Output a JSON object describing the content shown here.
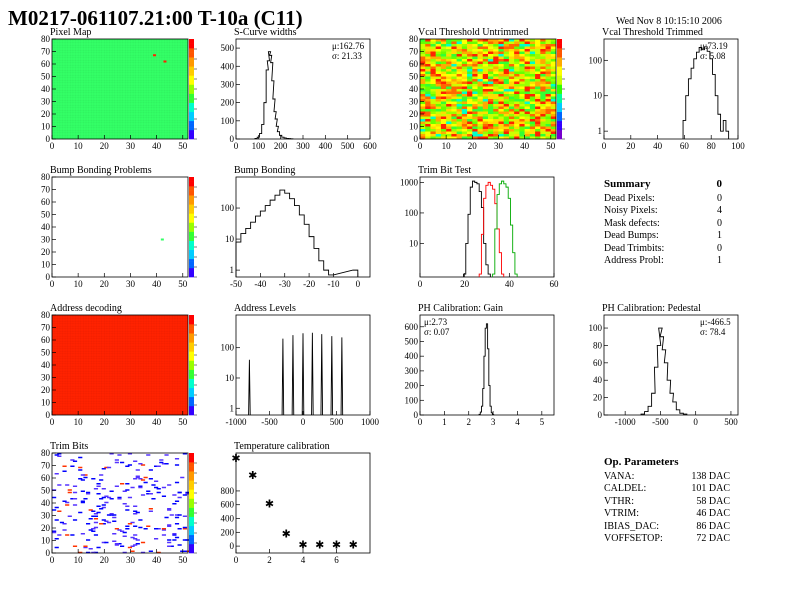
{
  "title": "M0217-061107.21:00 T-10a (C11)",
  "date": "Wed Nov  8 10:15:10 2006",
  "colors": {
    "green": "#33ff66",
    "red": "#ff2200",
    "orange": "#ff8800",
    "ph_calibration": "#ff0000",
    "frame": "#000000"
  },
  "panels": [
    {
      "name": "pixel-map",
      "title": "Pixel Map"
    },
    {
      "name": "s-curve-widths",
      "title": "S-Curve widths",
      "stats": [
        "μ:162.76",
        "σ: 21.33"
      ]
    },
    {
      "name": "vcal-untrimmed",
      "title": "Vcal Threshold Untrimmed"
    },
    {
      "name": "vcal-trimmed",
      "title": "Vcal Threshold Trimmed",
      "stats": [
        "μ:73.19",
        "σ: 5.08"
      ]
    },
    {
      "name": "bump-bonding-problems",
      "title": "Bump Bonding Problems"
    },
    {
      "name": "bump-bonding",
      "title": "Bump Bonding"
    },
    {
      "name": "trim-bit-test",
      "title": "Trim Bit Test"
    },
    {
      "name": "address-decoding",
      "title": "Address decoding"
    },
    {
      "name": "address-levels",
      "title": "Address Levels"
    },
    {
      "name": "ph-gain",
      "title": "PH Calibration: Gain",
      "stats": [
        "μ:2.73",
        "σ: 0.07"
      ]
    },
    {
      "name": "ph-pedestal",
      "title": "PH Calibration: Pedestal",
      "stats": [
        "μ:-466.5",
        "σ: 78.4"
      ]
    },
    {
      "name": "trim-bits",
      "title": "Trim Bits"
    },
    {
      "name": "temperature-calibration",
      "title": "Temperature calibration"
    }
  ],
  "summary": {
    "title": "Summary",
    "value": "0",
    "rows": [
      {
        "label": "Dead Pixels:",
        "value": "0"
      },
      {
        "label": "Noisy Pixels:",
        "value": "4"
      },
      {
        "label": "Mask defects:",
        "value": "0"
      },
      {
        "label": "Dead Bumps:",
        "value": "1"
      },
      {
        "label": "Dead Trimbits:",
        "value": "0"
      },
      {
        "label": "Address Probl:",
        "value": "1"
      }
    ]
  },
  "op_parameters": {
    "title": "Op. Parameters",
    "rows": [
      {
        "label": "VANA:",
        "value": "138 DAC"
      },
      {
        "label": "CALDEL:",
        "value": "101 DAC"
      },
      {
        "label": "VTHR:",
        "value": "58 DAC"
      },
      {
        "label": "VTRIM:",
        "value": "46 DAC"
      },
      {
        "label": "IBIAS_DAC:",
        "value": "86 DAC"
      },
      {
        "label": "VOFFSETOP:",
        "value": "72 DAC"
      }
    ]
  },
  "chart_data": [
    {
      "panel": "pixel-map",
      "type": "heatmap",
      "title": "Pixel Map",
      "xlim": [
        0,
        52
      ],
      "ylim": [
        0,
        80
      ],
      "xticks": [
        0,
        10,
        20,
        30,
        40,
        50
      ],
      "yticks": [
        0,
        10,
        20,
        30,
        40,
        50,
        60,
        70,
        80
      ],
      "fill": "green",
      "hot_pixels": [
        [
          39,
          67
        ],
        [
          43,
          62
        ]
      ]
    },
    {
      "panel": "s-curve-widths",
      "type": "bar",
      "title": "S-Curve widths",
      "xlim": [
        0,
        600
      ],
      "ylim": [
        0,
        550
      ],
      "xticks": [
        0,
        100,
        200,
        300,
        400,
        500,
        600
      ],
      "yticks": [
        0,
        100,
        200,
        300,
        400,
        500
      ],
      "x": [
        90,
        100,
        110,
        120,
        130,
        140,
        145,
        150,
        155,
        160,
        165,
        170,
        175,
        180,
        185,
        190,
        200,
        210,
        220,
        230,
        240,
        250
      ],
      "values": [
        3,
        10,
        30,
        80,
        200,
        380,
        430,
        480,
        460,
        420,
        320,
        220,
        150,
        110,
        70,
        40,
        20,
        10,
        6,
        3,
        2,
        1
      ]
    },
    {
      "panel": "vcal-untrimmed",
      "type": "heatmap",
      "title": "Vcal Threshold Untrimmed",
      "xlim": [
        0,
        52
      ],
      "ylim": [
        0,
        80
      ],
      "xticks": [
        0,
        10,
        20,
        30,
        40,
        50
      ],
      "yticks": [
        0,
        10,
        20,
        30,
        40,
        50,
        60,
        70,
        80
      ],
      "fill": "mixed-green-yellow-red"
    },
    {
      "panel": "vcal-trimmed",
      "type": "bar",
      "title": "Vcal Threshold Trimmed",
      "xlim": [
        0,
        100
      ],
      "ylim": [
        0.6,
        400
      ],
      "log_y": true,
      "xticks": [
        0,
        20,
        40,
        60,
        80,
        100
      ],
      "yticks": [
        1,
        10,
        100
      ],
      "x": [
        60,
        62,
        64,
        66,
        68,
        70,
        72,
        74,
        76,
        78,
        80,
        82,
        84,
        86,
        88,
        90,
        92
      ],
      "values": [
        2,
        10,
        30,
        60,
        110,
        170,
        230,
        200,
        240,
        180,
        110,
        40,
        10,
        3,
        1,
        2,
        1
      ]
    },
    {
      "panel": "bump-bonding-problems",
      "type": "heatmap",
      "title": "Bump Bonding Problems",
      "xlim": [
        0,
        52
      ],
      "ylim": [
        0,
        80
      ],
      "xticks": [
        0,
        10,
        20,
        30,
        40,
        50
      ],
      "yticks": [
        0,
        10,
        20,
        30,
        40,
        50,
        60,
        70,
        80
      ],
      "fill": "white",
      "hot_pixels": [
        [
          42,
          30
        ]
      ]
    },
    {
      "panel": "bump-bonding",
      "type": "bar",
      "title": "Bump Bonding",
      "xlim": [
        -50,
        5
      ],
      "ylim": [
        0.6,
        1000
      ],
      "log_y": true,
      "xticks": [
        -50,
        -40,
        -30,
        -20,
        -10,
        0
      ],
      "yticks": [
        1,
        10,
        100
      ],
      "x": [
        -49,
        -47,
        -45,
        -43,
        -41,
        -39,
        -37,
        -35,
        -33,
        -31,
        -29,
        -27,
        -25,
        -23,
        -21,
        -19,
        -17,
        -15,
        -13,
        -11,
        -1
      ],
      "values": [
        8,
        15,
        22,
        35,
        55,
        80,
        120,
        180,
        260,
        380,
        300,
        200,
        120,
        60,
        30,
        12,
        5,
        2,
        1,
        0.7,
        1
      ]
    },
    {
      "panel": "trim-bit-test",
      "type": "line",
      "title": "Trim Bit Test",
      "xlim": [
        0,
        60
      ],
      "ylim": [
        0.8,
        1500
      ],
      "log_y": true,
      "xticks": [
        0,
        20,
        40,
        60
      ],
      "yticks": [
        10,
        100,
        1000
      ],
      "series": [
        {
          "color": "#000000",
          "x": [
            20,
            21,
            22,
            23,
            24,
            25,
            26,
            27,
            28,
            29,
            30,
            31
          ],
          "values": [
            1,
            10,
            90,
            700,
            1100,
            1000,
            900,
            500,
            150,
            10,
            2,
            1
          ]
        },
        {
          "color": "#ff0000",
          "x": [
            27,
            28,
            29,
            30,
            31,
            32,
            33,
            34,
            35,
            36,
            37
          ],
          "values": [
            1,
            20,
            300,
            800,
            1000,
            800,
            600,
            200,
            30,
            5,
            1
          ]
        },
        {
          "color": "#00aa00",
          "x": [
            33,
            34,
            35,
            36,
            37,
            38,
            39,
            40,
            41,
            42,
            43
          ],
          "values": [
            1,
            30,
            400,
            900,
            1100,
            900,
            700,
            300,
            40,
            5,
            1
          ]
        }
      ]
    },
    {
      "panel": "address-decoding",
      "type": "heatmap",
      "title": "Address decoding",
      "xlim": [
        0,
        52
      ],
      "ylim": [
        0,
        80
      ],
      "xticks": [
        0,
        10,
        20,
        30,
        40,
        50
      ],
      "yticks": [
        0,
        10,
        20,
        30,
        40,
        50,
        60,
        70,
        80
      ],
      "fill": "red"
    },
    {
      "panel": "address-levels",
      "type": "line",
      "title": "Address Levels",
      "xlim": [
        -1000,
        1000
      ],
      "ylim": [
        0.6,
        1200
      ],
      "log_y": true,
      "xticks": [
        -1000,
        -500,
        0,
        500,
        1000
      ],
      "yticks": [
        1,
        10,
        100
      ],
      "peaks": [
        -800,
        -300,
        -150,
        0,
        140,
        280,
        430,
        580
      ],
      "peak_heights": [
        40,
        200,
        260,
        300,
        310,
        280,
        240,
        220
      ]
    },
    {
      "panel": "ph-gain",
      "type": "bar",
      "title": "PH Calibration: Gain",
      "xlim": [
        0,
        5.5
      ],
      "ylim": [
        0,
        680
      ],
      "xticks": [
        0,
        1,
        2,
        3,
        4,
        5
      ],
      "yticks": [
        0,
        100,
        200,
        300,
        400,
        500,
        600
      ],
      "x": [
        2.45,
        2.5,
        2.55,
        2.6,
        2.65,
        2.7,
        2.75,
        2.8,
        2.85,
        2.9,
        2.95,
        3.0
      ],
      "values": [
        5,
        20,
        60,
        180,
        400,
        590,
        620,
        450,
        200,
        60,
        15,
        3
      ]
    },
    {
      "panel": "ph-pedestal",
      "type": "bar",
      "title": "PH Calibration: Pedestal",
      "xlim": [
        -1300,
        600
      ],
      "ylim": [
        0,
        115
      ],
      "xticks": [
        -1000,
        -500,
        0,
        500
      ],
      "yticks": [
        0,
        20,
        40,
        60,
        80,
        100
      ],
      "x": [
        -750,
        -700,
        -650,
        -600,
        -560,
        -520,
        -500,
        -480,
        -450,
        -420,
        -380,
        -340,
        -300,
        -250,
        -200,
        -150
      ],
      "values": [
        1,
        4,
        10,
        25,
        55,
        80,
        100,
        90,
        75,
        60,
        40,
        25,
        15,
        6,
        2,
        1
      ]
    },
    {
      "panel": "trim-bits",
      "type": "heatmap",
      "title": "Trim Bits",
      "xlim": [
        0,
        52
      ],
      "ylim": [
        0,
        80
      ],
      "xticks": [
        0,
        10,
        20,
        30,
        40,
        50
      ],
      "yticks": [
        0,
        10,
        20,
        30,
        40,
        50,
        60,
        70,
        80
      ],
      "fill": "sparse-blue"
    },
    {
      "panel": "temperature-calibration",
      "type": "scatter",
      "title": "Temperature calibration",
      "xlim": [
        0,
        8
      ],
      "ylim": [
        -100,
        1350
      ],
      "xticks": [
        0,
        2,
        4,
        6
      ],
      "yticks": [
        0,
        200,
        400,
        600,
        800
      ],
      "x": [
        0,
        1,
        2,
        3,
        4,
        5,
        6,
        7
      ],
      "values": [
        1280,
        1030,
        620,
        180,
        20,
        20,
        20,
        20
      ]
    }
  ]
}
